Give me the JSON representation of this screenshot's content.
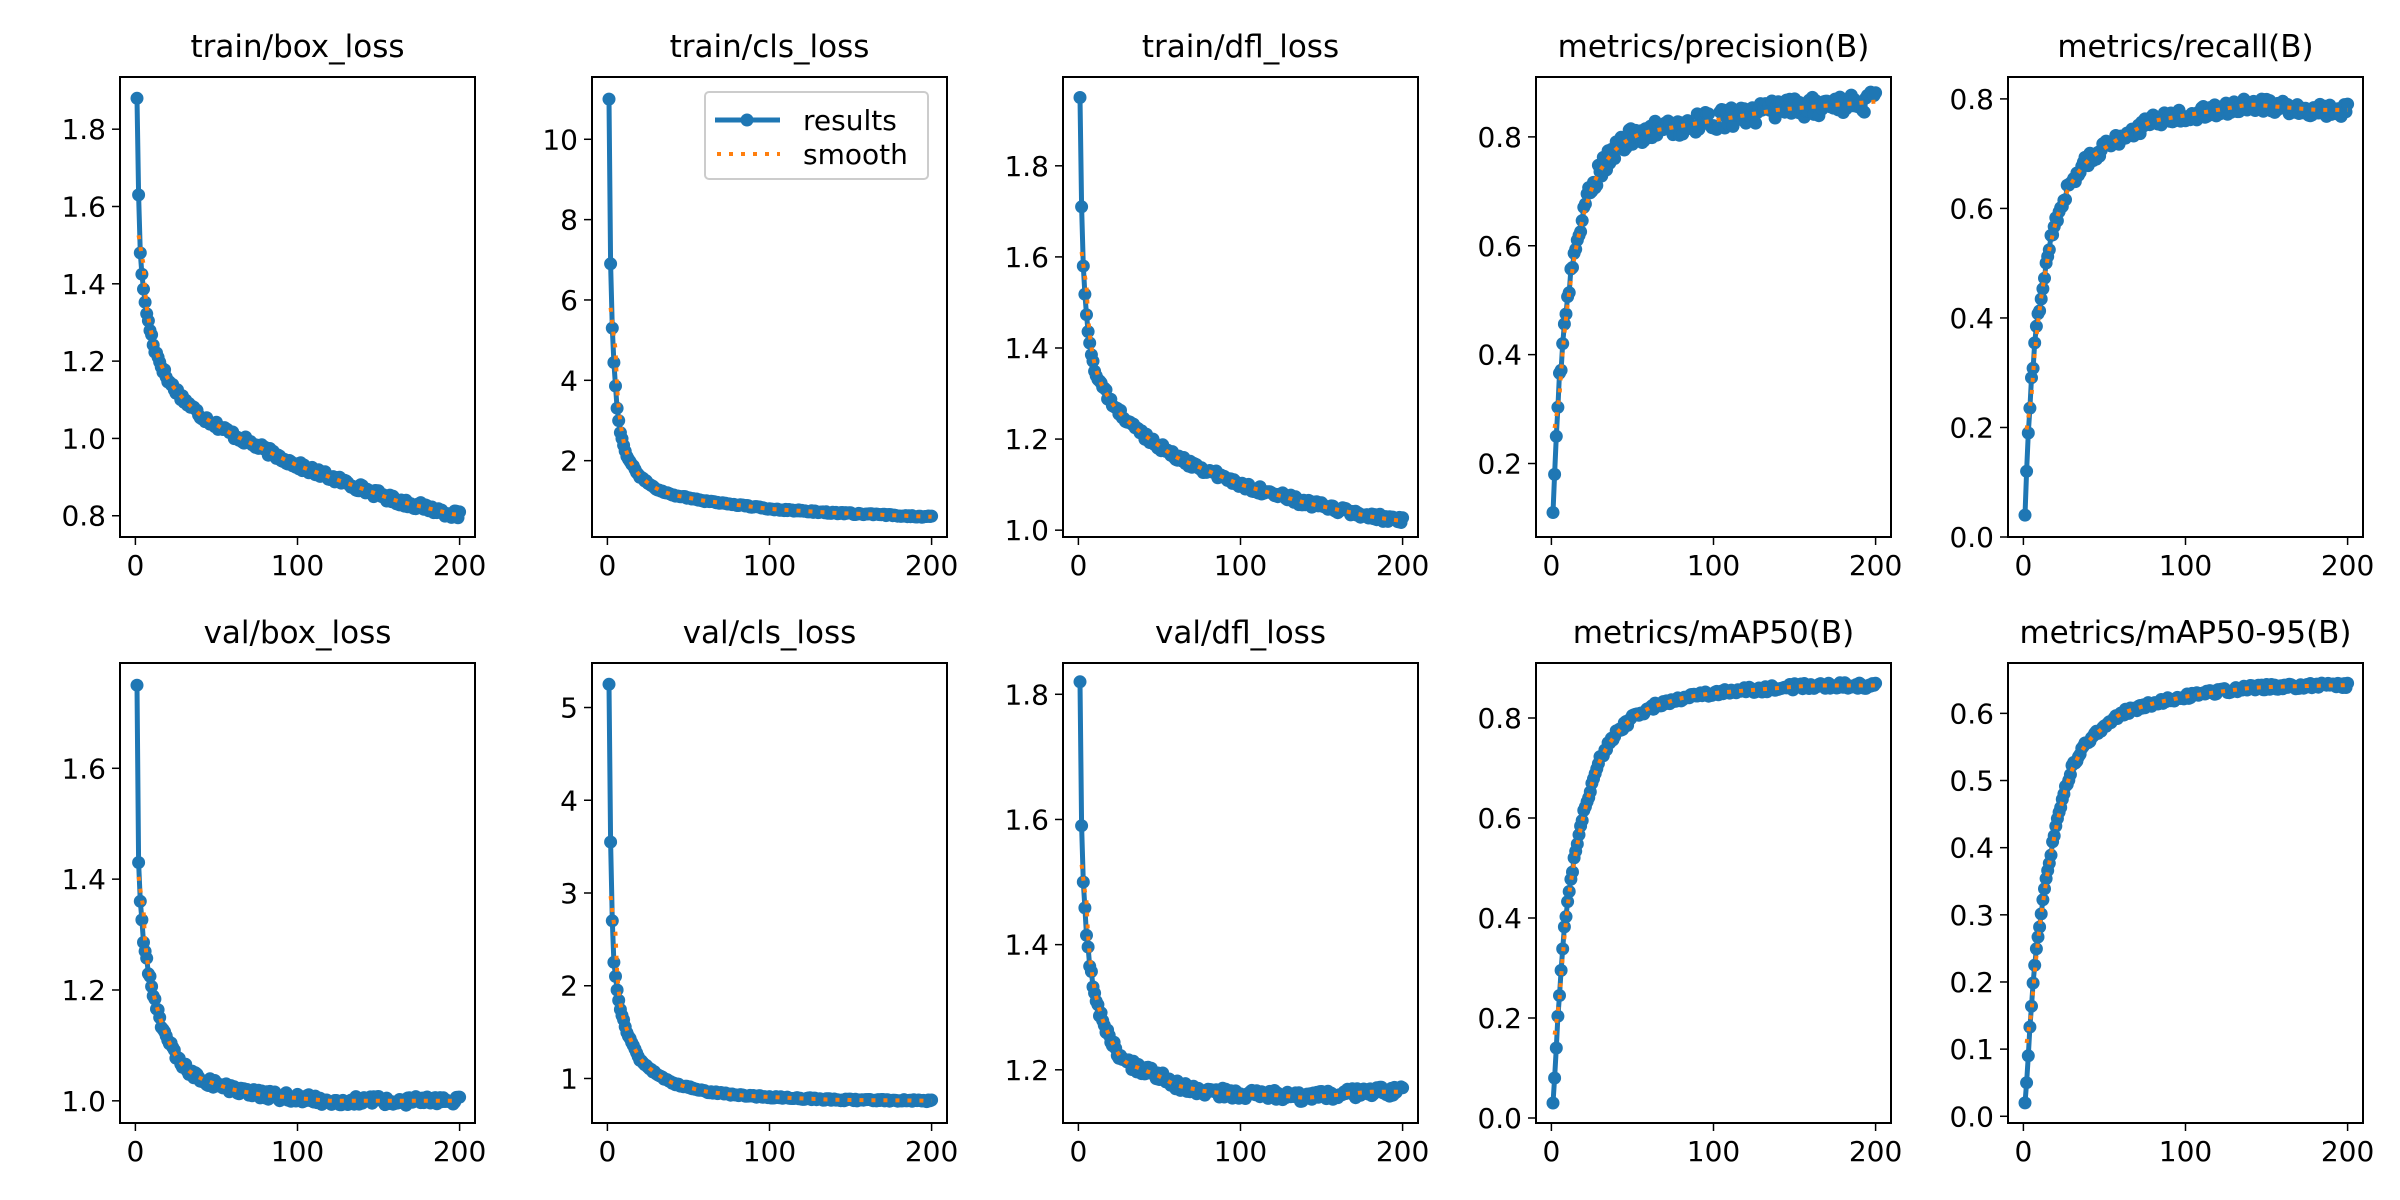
{
  "figure": {
    "layout": "2 rows x 5 columns of line subplots",
    "colors": {
      "results": "#1f77b4",
      "smooth": "#ff7f0e",
      "axes": "#000000",
      "background": "#ffffff"
    },
    "legend": {
      "panel_index": 1,
      "location": "upper-right",
      "entries": [
        "results",
        "smooth"
      ]
    }
  },
  "chart_data": [
    {
      "type": "line",
      "title": "train/box_loss",
      "xlabel": "",
      "ylabel": "",
      "xlim": [
        -9.5,
        209.5
      ],
      "ylim": [
        0.745,
        1.935
      ],
      "xticks": [
        0,
        100,
        200
      ],
      "xtick_labels": [
        "0",
        "100",
        "200"
      ],
      "yticks": [
        0.8,
        1.0,
        1.2,
        1.4,
        1.6,
        1.8
      ],
      "ytick_labels": [
        "0.8",
        "1.0",
        "1.2",
        "1.4",
        "1.6",
        "1.8"
      ],
      "grid": false,
      "series": [
        {
          "name": "results",
          "style": "line+markers",
          "anchors_x": [
            1,
            2,
            3,
            5,
            8,
            12,
            20,
            30,
            40,
            60,
            80,
            100,
            120,
            140,
            160,
            180,
            200
          ],
          "anchors_y": [
            1.88,
            1.63,
            1.48,
            1.38,
            1.3,
            1.23,
            1.15,
            1.1,
            1.06,
            1.01,
            0.97,
            0.93,
            0.9,
            0.87,
            0.84,
            0.82,
            0.8
          ],
          "noise": 0.01
        },
        {
          "name": "smooth",
          "style": "dotted",
          "derived_from": "results"
        }
      ]
    },
    {
      "type": "line",
      "title": "train/cls_loss",
      "xlabel": "",
      "ylabel": "",
      "xlim": [
        -9.5,
        209.5
      ],
      "ylim": [
        0.1,
        11.55
      ],
      "xticks": [
        0,
        100,
        200
      ],
      "xtick_labels": [
        "0",
        "100",
        "200"
      ],
      "yticks": [
        2,
        4,
        6,
        8,
        10
      ],
      "ytick_labels": [
        "2",
        "4",
        "6",
        "8",
        "10"
      ],
      "grid": false,
      "series": [
        {
          "name": "results",
          "style": "line+markers",
          "anchors_x": [
            1,
            2,
            3,
            4,
            6,
            8,
            12,
            20,
            30,
            40,
            60,
            80,
            100,
            140,
            200
          ],
          "anchors_y": [
            11.0,
            6.9,
            5.3,
            4.45,
            3.3,
            2.7,
            2.1,
            1.6,
            1.3,
            1.15,
            1.0,
            0.9,
            0.8,
            0.7,
            0.6
          ],
          "noise": 0.02
        },
        {
          "name": "smooth",
          "style": "dotted",
          "derived_from": "results"
        }
      ]
    },
    {
      "type": "line",
      "title": "train/dfl_loss",
      "xlabel": "",
      "ylabel": "",
      "xlim": [
        -9.5,
        209.5
      ],
      "ylim": [
        0.985,
        1.995
      ],
      "xticks": [
        0,
        100,
        200
      ],
      "xtick_labels": [
        "0",
        "100",
        "200"
      ],
      "yticks": [
        1.0,
        1.2,
        1.4,
        1.6,
        1.8
      ],
      "ytick_labels": [
        "1.0",
        "1.2",
        "1.4",
        "1.6",
        "1.8"
      ],
      "grid": false,
      "series": [
        {
          "name": "results",
          "style": "line+markers",
          "anchors_x": [
            1,
            2,
            3,
            4,
            6,
            10,
            20,
            30,
            40,
            60,
            80,
            100,
            120,
            140,
            160,
            180,
            200
          ],
          "anchors_y": [
            1.95,
            1.71,
            1.58,
            1.52,
            1.43,
            1.35,
            1.28,
            1.24,
            1.21,
            1.16,
            1.13,
            1.1,
            1.08,
            1.06,
            1.045,
            1.03,
            1.02
          ],
          "noise": 0.008
        },
        {
          "name": "smooth",
          "style": "dotted",
          "derived_from": "results"
        }
      ]
    },
    {
      "type": "line",
      "title": "metrics/precision(B)",
      "xlabel": "",
      "ylabel": "",
      "xlim": [
        -9.5,
        209.5
      ],
      "ylim": [
        0.065,
        0.91
      ],
      "xticks": [
        0,
        100,
        200
      ],
      "xtick_labels": [
        "0",
        "100",
        "200"
      ],
      "yticks": [
        0.2,
        0.4,
        0.6,
        0.8
      ],
      "ytick_labels": [
        "0.2",
        "0.4",
        "0.6",
        "0.8"
      ],
      "grid": false,
      "series": [
        {
          "name": "results",
          "style": "line+markers",
          "anchors_x": [
            1,
            3,
            5,
            8,
            12,
            16,
            20,
            25,
            30,
            40,
            50,
            60,
            80,
            100,
            120,
            140,
            160,
            180,
            200
          ],
          "anchors_y": [
            0.11,
            0.25,
            0.36,
            0.44,
            0.55,
            0.61,
            0.66,
            0.71,
            0.74,
            0.78,
            0.8,
            0.81,
            0.82,
            0.83,
            0.84,
            0.85,
            0.855,
            0.86,
            0.865
          ],
          "noise": 0.018
        },
        {
          "name": "smooth",
          "style": "dotted",
          "derived_from": "results"
        }
      ]
    },
    {
      "type": "line",
      "title": "metrics/recall(B)",
      "xlabel": "",
      "ylabel": "",
      "xlim": [
        -9.5,
        209.5
      ],
      "ylim": [
        0.0,
        0.84
      ],
      "xticks": [
        0,
        100,
        200
      ],
      "xtick_labels": [
        "0",
        "100",
        "200"
      ],
      "yticks": [
        0.0,
        0.2,
        0.4,
        0.6,
        0.8
      ],
      "ytick_labels": [
        "0.0",
        "0.2",
        "0.4",
        "0.6",
        "0.8"
      ],
      "grid": false,
      "series": [
        {
          "name": "results",
          "style": "line+markers",
          "anchors_x": [
            1,
            2,
            3,
            5,
            8,
            12,
            16,
            20,
            25,
            30,
            40,
            50,
            60,
            80,
            100,
            120,
            140,
            160,
            180,
            200
          ],
          "anchors_y": [
            0.04,
            0.12,
            0.19,
            0.28,
            0.38,
            0.46,
            0.53,
            0.58,
            0.62,
            0.65,
            0.69,
            0.71,
            0.73,
            0.76,
            0.77,
            0.78,
            0.79,
            0.785,
            0.78,
            0.78
          ],
          "noise": 0.012
        },
        {
          "name": "smooth",
          "style": "dotted",
          "derived_from": "results"
        }
      ]
    },
    {
      "type": "line",
      "title": "val/box_loss",
      "xlabel": "",
      "ylabel": "",
      "xlim": [
        -9.5,
        209.5
      ],
      "ylim": [
        0.96,
        1.79
      ],
      "xticks": [
        0,
        100,
        200
      ],
      "xtick_labels": [
        "0",
        "100",
        "200"
      ],
      "yticks": [
        1.0,
        1.2,
        1.4,
        1.6
      ],
      "ytick_labels": [
        "1.0",
        "1.2",
        "1.4",
        "1.6"
      ],
      "grid": false,
      "series": [
        {
          "name": "results",
          "style": "line+markers",
          "anchors_x": [
            1,
            2,
            3,
            5,
            8,
            12,
            16,
            20,
            25,
            30,
            40,
            50,
            60,
            80,
            100,
            120,
            140,
            160,
            180,
            200
          ],
          "anchors_y": [
            1.75,
            1.43,
            1.36,
            1.29,
            1.23,
            1.18,
            1.14,
            1.11,
            1.08,
            1.06,
            1.04,
            1.03,
            1.02,
            1.01,
            1.005,
            1.0,
            1.0,
            1.0,
            1.0,
            1.0
          ],
          "noise": 0.008
        },
        {
          "name": "smooth",
          "style": "dotted",
          "derived_from": "results"
        }
      ]
    },
    {
      "type": "line",
      "title": "val/cls_loss",
      "xlabel": "",
      "ylabel": "",
      "xlim": [
        -9.5,
        209.5
      ],
      "ylim": [
        0.52,
        5.48
      ],
      "xticks": [
        0,
        100,
        200
      ],
      "xtick_labels": [
        "0",
        "100",
        "200"
      ],
      "yticks": [
        1,
        2,
        3,
        4,
        5
      ],
      "ytick_labels": [
        "1",
        "2",
        "3",
        "4",
        "5"
      ],
      "grid": false,
      "series": [
        {
          "name": "results",
          "style": "line+markers",
          "anchors_x": [
            1,
            2,
            3,
            4,
            6,
            8,
            12,
            16,
            20,
            30,
            40,
            60,
            80,
            100,
            140,
            200
          ],
          "anchors_y": [
            5.25,
            3.55,
            2.7,
            2.25,
            1.95,
            1.75,
            1.5,
            1.35,
            1.2,
            1.05,
            0.95,
            0.86,
            0.82,
            0.8,
            0.77,
            0.76
          ],
          "noise": 0.01
        },
        {
          "name": "smooth",
          "style": "dotted",
          "derived_from": "results"
        }
      ]
    },
    {
      "type": "line",
      "title": "val/dfl_loss",
      "xlabel": "",
      "ylabel": "",
      "xlim": [
        -9.5,
        209.5
      ],
      "ylim": [
        1.115,
        1.85
      ],
      "xticks": [
        0,
        100,
        200
      ],
      "xtick_labels": [
        "0",
        "100",
        "200"
      ],
      "yticks": [
        1.2,
        1.4,
        1.6,
        1.8
      ],
      "ytick_labels": [
        "1.2",
        "1.4",
        "1.6",
        "1.8"
      ],
      "grid": false,
      "series": [
        {
          "name": "results",
          "style": "line+markers",
          "anchors_x": [
            1,
            2,
            3,
            5,
            8,
            12,
            16,
            20,
            25,
            30,
            40,
            50,
            60,
            80,
            100,
            120,
            140,
            160,
            180,
            200
          ],
          "anchors_y": [
            1.82,
            1.59,
            1.5,
            1.41,
            1.35,
            1.3,
            1.27,
            1.25,
            1.22,
            1.21,
            1.2,
            1.19,
            1.175,
            1.165,
            1.16,
            1.16,
            1.155,
            1.16,
            1.165,
            1.165
          ],
          "noise": 0.008
        },
        {
          "name": "smooth",
          "style": "dotted",
          "derived_from": "results"
        }
      ]
    },
    {
      "type": "line",
      "title": "metrics/mAP50(B)",
      "xlabel": "",
      "ylabel": "",
      "xlim": [
        -9.5,
        209.5
      ],
      "ylim": [
        -0.01,
        0.91
      ],
      "xticks": [
        0,
        100,
        200
      ],
      "xtick_labels": [
        "0",
        "100",
        "200"
      ],
      "yticks": [
        0.0,
        0.2,
        0.4,
        0.6,
        0.8
      ],
      "ytick_labels": [
        "0.0",
        "0.2",
        "0.4",
        "0.6",
        "0.8"
      ],
      "grid": false,
      "series": [
        {
          "name": "results",
          "style": "line+markers",
          "anchors_x": [
            1,
            2,
            3,
            4,
            6,
            8,
            12,
            16,
            20,
            25,
            30,
            40,
            50,
            60,
            80,
            100,
            120,
            140,
            160,
            200
          ],
          "anchors_y": [
            0.03,
            0.08,
            0.14,
            0.2,
            0.3,
            0.38,
            0.48,
            0.55,
            0.61,
            0.67,
            0.72,
            0.77,
            0.8,
            0.82,
            0.84,
            0.85,
            0.855,
            0.86,
            0.865,
            0.865
          ],
          "noise": 0.006
        },
        {
          "name": "smooth",
          "style": "dotted",
          "derived_from": "results"
        }
      ]
    },
    {
      "type": "line",
      "title": "metrics/mAP50-95(B)",
      "xlabel": "",
      "ylabel": "",
      "xlim": [
        -9.5,
        209.5
      ],
      "ylim": [
        -0.01,
        0.675
      ],
      "xticks": [
        0,
        100,
        200
      ],
      "xtick_labels": [
        "0",
        "100",
        "200"
      ],
      "yticks": [
        0.0,
        0.1,
        0.2,
        0.3,
        0.4,
        0.5,
        0.6
      ],
      "ytick_labels": [
        "0.0",
        "0.1",
        "0.2",
        "0.3",
        "0.4",
        "0.5",
        "0.6"
      ],
      "grid": false,
      "series": [
        {
          "name": "results",
          "style": "line+markers",
          "anchors_x": [
            1,
            2,
            3,
            4,
            6,
            8,
            12,
            16,
            20,
            25,
            30,
            40,
            50,
            60,
            80,
            100,
            120,
            140,
            160,
            200
          ],
          "anchors_y": [
            0.02,
            0.05,
            0.09,
            0.13,
            0.2,
            0.25,
            0.32,
            0.38,
            0.43,
            0.48,
            0.52,
            0.56,
            0.58,
            0.6,
            0.615,
            0.625,
            0.632,
            0.638,
            0.64,
            0.642
          ],
          "noise": 0.004
        },
        {
          "name": "smooth",
          "style": "dotted",
          "derived_from": "results"
        }
      ]
    }
  ]
}
